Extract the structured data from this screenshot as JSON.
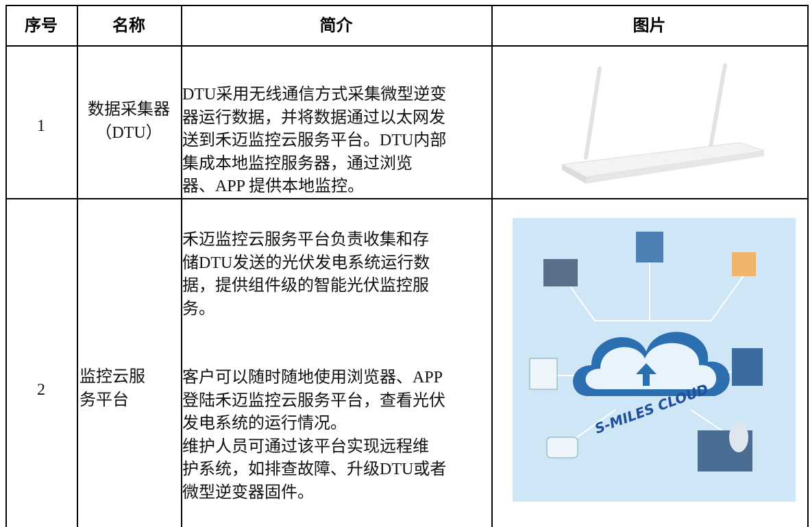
{
  "header": {
    "columns": [
      "序号",
      "名称",
      "简介",
      "图片"
    ]
  },
  "table": {
    "rows": [
      {
        "number": "1",
        "name": [
          "数据采集器",
          "（DTU）"
        ],
        "intro": [
          [
            "DTU采用无线通信方式采集微型逆变",
            "器运行数据，并将数据通过以太网发",
            "送到禾迈监控云服务平台。DTU内部",
            "集成本地监控服务器，通过浏览",
            "器、APP 提供本地监控。"
          ]
        ]
      },
      {
        "number": "2",
        "name": [
          "监控云服",
          "务平台"
        ],
        "intro": [
          [
            "禾迈监控云服务平台负责收集和存",
            "储DTU发送的光伏发电系统运行数",
            "据，提供组件级的智能光伏监控服",
            "务。"
          ],
          [
            "客户可以随时随地使用浏览器、APP",
            "登陆禾迈监控云服务平台，查看光伏",
            "发电系统的运行情况。"
          ],
          [
            "维护人员可通过该平台实现远程维",
            "护系统，如排查故障、升级DTU或者",
            "微型逆变器固件。"
          ]
        ],
        "image_text": "S-MILES CLOUD"
      }
    ]
  }
}
